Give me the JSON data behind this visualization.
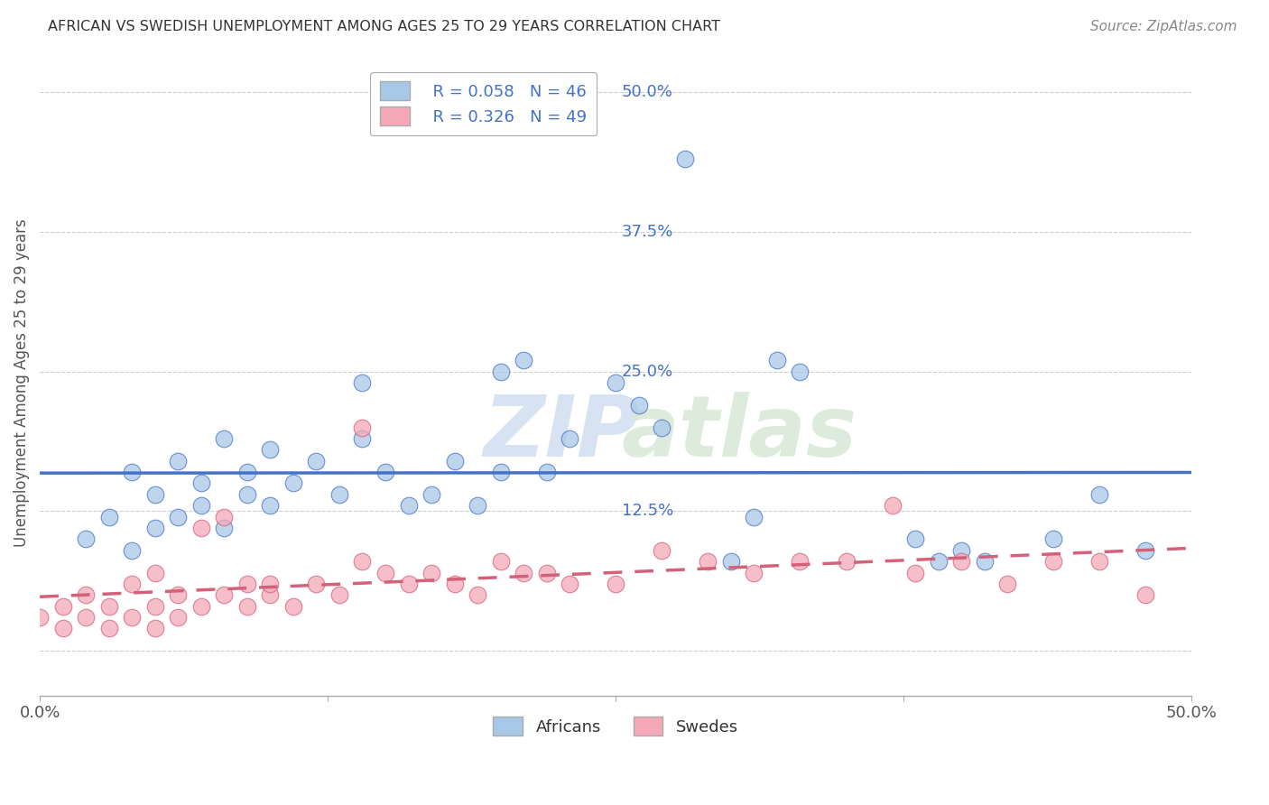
{
  "title": "AFRICAN VS SWEDISH UNEMPLOYMENT AMONG AGES 25 TO 29 YEARS CORRELATION CHART",
  "source": "Source: ZipAtlas.com",
  "ylabel": "Unemployment Among Ages 25 to 29 years",
  "xlim": [
    0.0,
    0.5
  ],
  "ylim": [
    -0.04,
    0.52
  ],
  "xticks": [
    0.0,
    0.125,
    0.25,
    0.375,
    0.5
  ],
  "xtick_labels": [
    "0.0%",
    "",
    "",
    "",
    "50.0%"
  ],
  "yticks": [
    0.0,
    0.125,
    0.25,
    0.375,
    0.5
  ],
  "ytick_labels": [
    "",
    "12.5%",
    "25.0%",
    "37.5%",
    "50.0%"
  ],
  "legend_r1": "R = 0.058",
  "legend_n1": "N = 46",
  "legend_r2": "R = 0.326",
  "legend_n2": "N = 49",
  "color_african": "#a8c8e8",
  "color_swedish": "#f4a8b8",
  "color_line_african": "#4472c4",
  "color_line_swedish": "#d4607a",
  "background_color": "#ffffff",
  "grid_color": "#cccccc",
  "africans_x": [
    0.02,
    0.03,
    0.04,
    0.04,
    0.05,
    0.05,
    0.06,
    0.06,
    0.07,
    0.07,
    0.08,
    0.08,
    0.09,
    0.09,
    0.1,
    0.1,
    0.11,
    0.12,
    0.13,
    0.14,
    0.14,
    0.15,
    0.16,
    0.17,
    0.18,
    0.19,
    0.2,
    0.2,
    0.21,
    0.22,
    0.23,
    0.25,
    0.26,
    0.27,
    0.28,
    0.3,
    0.31,
    0.32,
    0.33,
    0.38,
    0.39,
    0.4,
    0.41,
    0.44,
    0.46,
    0.48
  ],
  "africans_y": [
    0.1,
    0.12,
    0.09,
    0.16,
    0.11,
    0.14,
    0.12,
    0.17,
    0.13,
    0.15,
    0.11,
    0.19,
    0.14,
    0.16,
    0.13,
    0.18,
    0.15,
    0.17,
    0.14,
    0.24,
    0.19,
    0.16,
    0.13,
    0.14,
    0.17,
    0.13,
    0.25,
    0.16,
    0.26,
    0.16,
    0.19,
    0.24,
    0.22,
    0.2,
    0.44,
    0.08,
    0.12,
    0.26,
    0.25,
    0.1,
    0.08,
    0.09,
    0.08,
    0.1,
    0.14,
    0.09
  ],
  "swedes_x": [
    0.0,
    0.01,
    0.01,
    0.02,
    0.02,
    0.03,
    0.03,
    0.04,
    0.04,
    0.05,
    0.05,
    0.05,
    0.06,
    0.06,
    0.07,
    0.07,
    0.08,
    0.08,
    0.09,
    0.09,
    0.1,
    0.1,
    0.11,
    0.12,
    0.13,
    0.14,
    0.14,
    0.15,
    0.16,
    0.17,
    0.18,
    0.19,
    0.2,
    0.21,
    0.22,
    0.23,
    0.25,
    0.27,
    0.29,
    0.31,
    0.33,
    0.35,
    0.37,
    0.38,
    0.4,
    0.42,
    0.44,
    0.46,
    0.48
  ],
  "swedes_y": [
    0.03,
    0.02,
    0.04,
    0.03,
    0.05,
    0.02,
    0.04,
    0.03,
    0.06,
    0.02,
    0.04,
    0.07,
    0.03,
    0.05,
    0.04,
    0.11,
    0.05,
    0.12,
    0.04,
    0.06,
    0.05,
    0.06,
    0.04,
    0.06,
    0.05,
    0.08,
    0.2,
    0.07,
    0.06,
    0.07,
    0.06,
    0.05,
    0.08,
    0.07,
    0.07,
    0.06,
    0.06,
    0.09,
    0.08,
    0.07,
    0.08,
    0.08,
    0.13,
    0.07,
    0.08,
    0.06,
    0.08,
    0.08,
    0.05
  ],
  "watermark_zip": "ZIP",
  "watermark_atlas": "atlas"
}
